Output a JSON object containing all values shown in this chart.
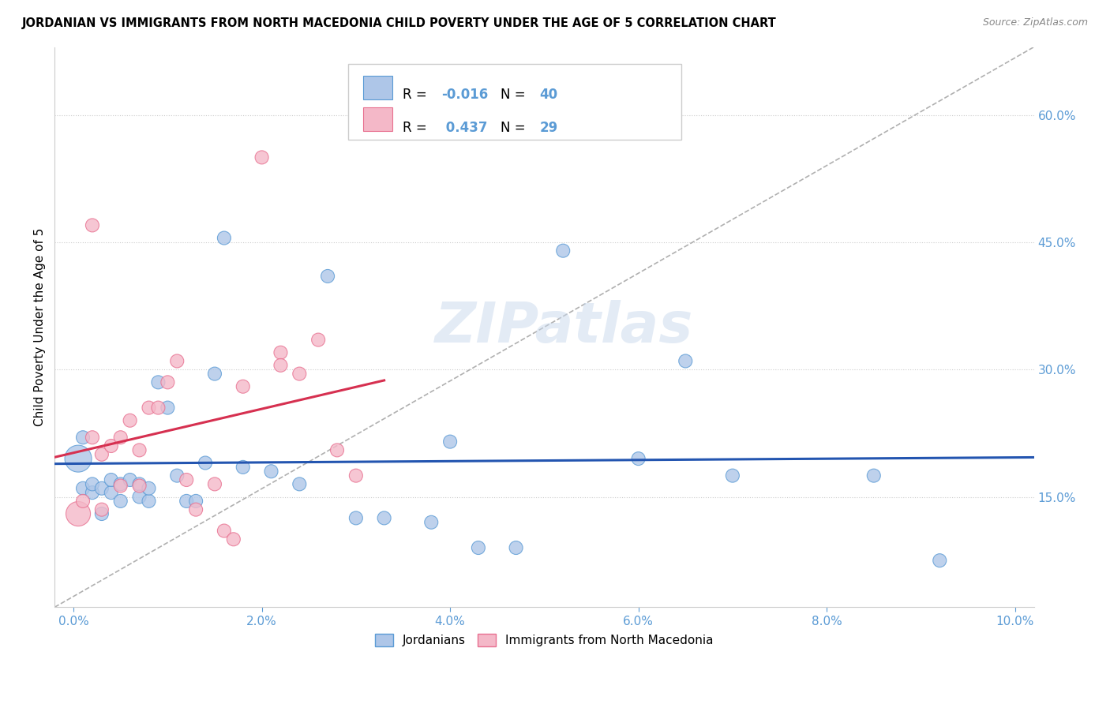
{
  "title": "JORDANIAN VS IMMIGRANTS FROM NORTH MACEDONIA CHILD POVERTY UNDER THE AGE OF 5 CORRELATION CHART",
  "source": "Source: ZipAtlas.com",
  "ylabel": "Child Poverty Under the Age of 5",
  "ylabel_right_ticks": [
    "60.0%",
    "45.0%",
    "30.0%",
    "15.0%"
  ],
  "ylabel_right_vals": [
    0.6,
    0.45,
    0.3,
    0.15
  ],
  "xlim": [
    -0.002,
    0.102
  ],
  "ylim": [
    0.02,
    0.68
  ],
  "legend_label1": "Jordanians",
  "legend_label2": "Immigrants from North Macedonia",
  "r1": "-0.016",
  "n1": "40",
  "r2": "0.437",
  "n2": "29",
  "color_blue": "#aec6e8",
  "color_pink": "#f4b8c8",
  "color_blue_dark": "#5b9bd5",
  "color_pink_dark": "#e87090",
  "trend_blue": "#2355b0",
  "trend_pink": "#d63050",
  "diagonal_color": "#b0b0b0",
  "grid_color": "#cccccc",
  "axis_label_color": "#5b9bd5",
  "xticks": [
    0.0,
    0.02,
    0.04,
    0.06,
    0.08,
    0.1
  ],
  "xticklabels": [
    "0.0%",
    "2.0%",
    "4.0%",
    "6.0%",
    "8.0%",
    "10.0%"
  ],
  "jordanians_x": [
    0.0005,
    0.001,
    0.001,
    0.002,
    0.002,
    0.003,
    0.003,
    0.004,
    0.004,
    0.005,
    0.005,
    0.006,
    0.007,
    0.007,
    0.008,
    0.008,
    0.009,
    0.01,
    0.011,
    0.012,
    0.013,
    0.014,
    0.015,
    0.016,
    0.018,
    0.021,
    0.024,
    0.027,
    0.03,
    0.033,
    0.038,
    0.043,
    0.047,
    0.052,
    0.06,
    0.065,
    0.07,
    0.085,
    0.092,
    0.04
  ],
  "jordanians_y": [
    0.195,
    0.16,
    0.22,
    0.155,
    0.165,
    0.16,
    0.13,
    0.155,
    0.17,
    0.165,
    0.145,
    0.17,
    0.165,
    0.15,
    0.145,
    0.16,
    0.285,
    0.255,
    0.175,
    0.145,
    0.145,
    0.19,
    0.295,
    0.455,
    0.185,
    0.18,
    0.165,
    0.41,
    0.125,
    0.125,
    0.12,
    0.09,
    0.09,
    0.44,
    0.195,
    0.31,
    0.175,
    0.175,
    0.075,
    0.215
  ],
  "jordanians_size": [
    600,
    150,
    150,
    150,
    150,
    150,
    150,
    150,
    150,
    150,
    150,
    150,
    150,
    150,
    150,
    150,
    150,
    150,
    150,
    150,
    150,
    150,
    150,
    150,
    150,
    150,
    150,
    150,
    150,
    150,
    150,
    150,
    150,
    150,
    150,
    150,
    150,
    150,
    150,
    150
  ],
  "macedonia_x": [
    0.0005,
    0.001,
    0.002,
    0.002,
    0.003,
    0.003,
    0.004,
    0.005,
    0.005,
    0.006,
    0.007,
    0.007,
    0.008,
    0.009,
    0.01,
    0.011,
    0.012,
    0.013,
    0.015,
    0.016,
    0.017,
    0.018,
    0.02,
    0.022,
    0.024,
    0.026,
    0.028,
    0.03,
    0.022
  ],
  "macedonia_y": [
    0.13,
    0.145,
    0.22,
    0.47,
    0.2,
    0.135,
    0.21,
    0.22,
    0.163,
    0.24,
    0.163,
    0.205,
    0.255,
    0.255,
    0.285,
    0.31,
    0.17,
    0.135,
    0.165,
    0.11,
    0.1,
    0.28,
    0.55,
    0.32,
    0.295,
    0.335,
    0.205,
    0.175,
    0.305
  ],
  "macedonia_size": [
    500,
    150,
    150,
    150,
    150,
    150,
    150,
    150,
    150,
    150,
    150,
    150,
    150,
    150,
    150,
    150,
    150,
    150,
    150,
    150,
    150,
    150,
    150,
    150,
    150,
    150,
    150,
    150,
    150
  ]
}
